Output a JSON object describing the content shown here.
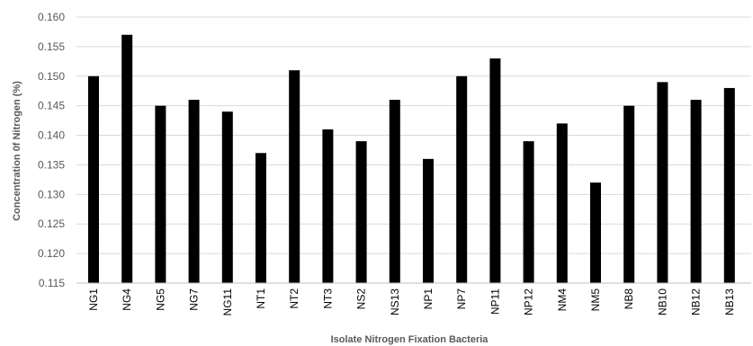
{
  "chart_data": {
    "type": "bar",
    "title": "",
    "xlabel": "Isolate Nitrogen Fixation Bacteria",
    "ylabel": "Concentration 0f Nitrogen (%)",
    "ylim": [
      0.115,
      0.16
    ],
    "yticks": [
      "0.115",
      "0.120",
      "0.125",
      "0.130",
      "0.135",
      "0.140",
      "0.145",
      "0.150",
      "0.155",
      "0.160"
    ],
    "grid": true,
    "legend": "none",
    "categories": [
      "NG1",
      "NG4",
      "NG5",
      "NG7",
      "NG11",
      "NT1",
      "NT2",
      "NT3",
      "NS2",
      "NS13",
      "NP1",
      "NP7",
      "NP11",
      "NP12",
      "NM4",
      "NM5",
      "NB8",
      "NB10",
      "NB12",
      "NB13"
    ],
    "values": [
      0.15,
      0.157,
      0.145,
      0.146,
      0.144,
      0.137,
      0.151,
      0.141,
      0.139,
      0.146,
      0.136,
      0.15,
      0.153,
      0.139,
      0.142,
      0.132,
      0.145,
      0.149,
      0.146,
      0.148
    ],
    "colors": {
      "bar": "#000000",
      "grid": "#d9d9d9",
      "axis": "#bfbfbf"
    }
  }
}
